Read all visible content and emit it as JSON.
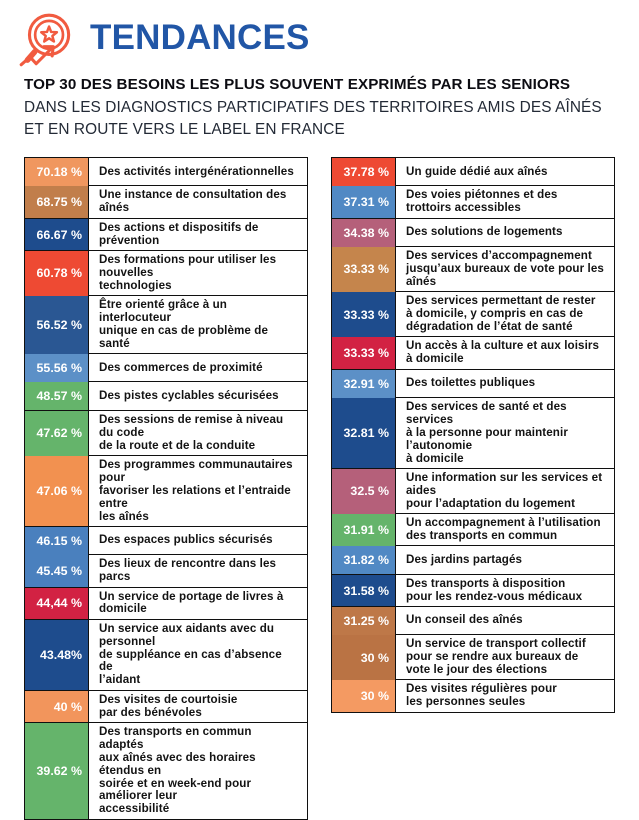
{
  "header": {
    "brand": "TENDANCES",
    "brand_color": "#2156A6",
    "icon": "magnifier-star-trend-icon",
    "icon_color": "#F15B40"
  },
  "title": {
    "line1": "TOP 30 DES BESOINS LES PLUS SOUVENT EXPRIMÉS PAR LES SENIORS",
    "line2": "DANS LES DIAGNOSTICS PARTICIPATIFS DES TERRITOIRES AMIS DES AÎNÉS",
    "line3": "ET EN ROUTE VERS LE LABEL EN FRANCE"
  },
  "chart_data": {
    "type": "table",
    "title": "TOP 30 DES BESOINS LES PLUS SOUVENT EXPRIMÉS PAR LES SENIORS",
    "unit": "%",
    "layout": "two-column ranked list, percentage badge left + label right",
    "left_column": [
      {
        "pct": "70.18 %",
        "value": 70.18,
        "color": "#F0975F",
        "label": "Des activités intergénérationnelles"
      },
      {
        "pct": "68.75 %",
        "value": 68.75,
        "color": "#C17E4B",
        "label": "Une instance de consultation des aînés"
      },
      {
        "pct": "66.67 %",
        "value": 66.67,
        "color": "#1E4C8D",
        "label": "Des actions et dispositifs de prévention"
      },
      {
        "pct": "60.78 %",
        "value": 60.78,
        "color": "#EE4A33",
        "label": "Des formations pour utiliser les nouvelles\ntechnologies"
      },
      {
        "pct": "56.52 %",
        "value": 56.52,
        "color": "#2A5793",
        "label": "Être orienté grâce à un interlocuteur\nunique en cas de problème de santé"
      },
      {
        "pct": "55.56 %",
        "value": 55.56,
        "color": "#5C90C7",
        "label": "Des commerces de proximité"
      },
      {
        "pct": "48.57 %",
        "value": 48.57,
        "color": "#65B46B",
        "label": "Des pistes cyclables sécurisées"
      },
      {
        "pct": "47.62 %",
        "value": 47.62,
        "color": "#65B46B",
        "label": "Des sessions de remise à niveau du code\nde la route et de la conduite"
      },
      {
        "pct": "47.06 %",
        "value": 47.06,
        "color": "#F29150",
        "label": "Des programmes communautaires pour\nfavoriser les relations et l’entraide entre\nles aînés"
      },
      {
        "pct": "46.15 %",
        "value": 46.15,
        "color": "#4A80BE",
        "label": "Des espaces publics sécurisés"
      },
      {
        "pct": "45.45 %",
        "value": 45.45,
        "color": "#4A80BE",
        "label": "Des lieux de rencontre dans les parcs"
      },
      {
        "pct": "44,44 %",
        "value": 44.44,
        "color": "#D22243",
        "label": "Un service de portage de livres à domicile"
      },
      {
        "pct": "43.48%",
        "value": 43.48,
        "color": "#1E4C8D",
        "label": "Un service aux aidants avec du personnel\nde suppléance en cas d’absence de\nl’aidant"
      },
      {
        "pct": "40 %",
        "value": 40.0,
        "color": "#F2955C",
        "label": "Des visites de courtoisie\npar des bénévoles"
      },
      {
        "pct": "39.62 %",
        "value": 39.62,
        "color": "#65B46B",
        "label": "Des transports en commun adaptés\naux aînés avec des horaires étendus en\nsoirée et en week-end pour améliorer leur\naccessibilité"
      }
    ],
    "right_column": [
      {
        "pct": "37.78 %",
        "value": 37.78,
        "color": "#EE4A33",
        "label": "Un guide dédié aux aînés"
      },
      {
        "pct": "37.31 %",
        "value": 37.31,
        "color": "#5189C4",
        "label": "Des voies piétonnes et des\ntrottoirs accessibles"
      },
      {
        "pct": "34.38 %",
        "value": 34.38,
        "color": "#B5607A",
        "label": "Des solutions de logements"
      },
      {
        "pct": "33.33 %",
        "value": 33.33,
        "color": "#C5854C",
        "label": "Des services d’accompagnement\njusqu’aux bureaux de vote pour les aînés"
      },
      {
        "pct": "33.33 %",
        "value": 33.33,
        "color": "#1E4C8D",
        "label": "Des services permettant de rester\nà domicile, y compris en cas de\ndégradation de l’état de santé"
      },
      {
        "pct": "33.33 %",
        "value": 33.33,
        "color": "#D22243",
        "label": "Un accès à la culture et aux loisirs\nà domicile"
      },
      {
        "pct": "32.91 %",
        "value": 32.91,
        "color": "#5C90C7",
        "label": "Des toilettes publiques"
      },
      {
        "pct": "32.81 %",
        "value": 32.81,
        "color": "#1E4C8D",
        "label": "Des services de santé et des services\nà la personne pour maintenir l’autonomie\nà domicile"
      },
      {
        "pct": "32.5 %",
        "value": 32.5,
        "color": "#B5607A",
        "label": "Une information sur les services et aides\npour l’adaptation du logement"
      },
      {
        "pct": "31.91 %",
        "value": 31.91,
        "color": "#65B46B",
        "label": "Un accompagnement à l’utilisation\ndes transports en commun"
      },
      {
        "pct": "31.82 %",
        "value": 31.82,
        "color": "#5189C4",
        "label": "Des jardins partagés"
      },
      {
        "pct": "31.58 %",
        "value": 31.58,
        "color": "#1E4C8D",
        "label": "Des transports à disposition\npour les rendez-vous médicaux"
      },
      {
        "pct": "31.25 %",
        "value": 31.25,
        "color": "#BE7848",
        "label": "Un conseil des aînés"
      },
      {
        "pct": "30 %",
        "value": 30.0,
        "color": "#BA7344",
        "label": "Un service de transport collectif\npour se rendre aux bureaux de\nvote le jour des élections"
      },
      {
        "pct": "30 %",
        "value": 30.0,
        "color": "#F49A62",
        "label": "Des visites régulières pour\nles personnes seules"
      }
    ]
  }
}
